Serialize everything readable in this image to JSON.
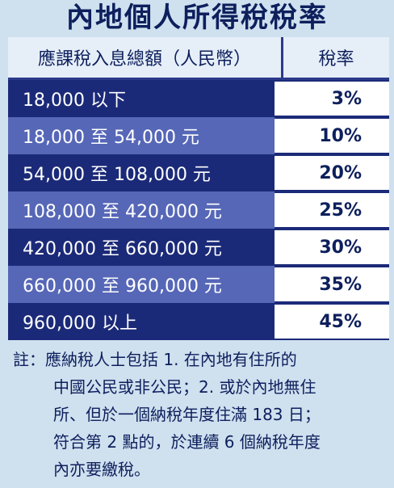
{
  "title": "內地個人所得稅稅率",
  "table": {
    "headers": [
      "應課稅入息總額（人民幣）",
      "稅率"
    ],
    "rows": [
      {
        "range": "18,000 以下",
        "rate": "3%"
      },
      {
        "range": "18,000 至 54,000 元",
        "rate": "10%"
      },
      {
        "range": "54,000 至 108,000 元",
        "rate": "20%"
      },
      {
        "range": "108,000 至 420,000 元",
        "rate": "25%"
      },
      {
        "range": "420,000 至 660,000 元",
        "rate": "30%"
      },
      {
        "range": "660,000 至 960,000 元",
        "rate": "35%"
      },
      {
        "range": "960,000 以上",
        "rate": "45%"
      }
    ]
  },
  "note": {
    "lines": [
      "註：應納稅人士包括 1. 在內地有住所的",
      "中國公民或非公民；2. 或於內地無住",
      "所、但於一個納稅年度住滿 183 日；",
      "符合第 2 點的，於連續 6 個納稅年度",
      "內亦要繳稅。"
    ]
  }
}
